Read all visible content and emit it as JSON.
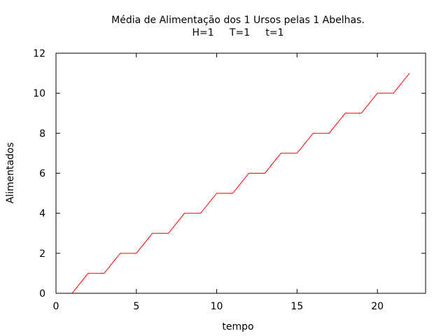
{
  "chart_data": {
    "type": "line",
    "title_line1": "Média de Alimentação dos 1 Ursos pelas 1 Abelhas.",
    "title_line2": "H=1     T=1     t=1",
    "xlabel": "tempo",
    "ylabel": "Alimentados",
    "xlim": [
      0,
      23
    ],
    "ylim": [
      0,
      12
    ],
    "x_ticks": [
      0,
      5,
      10,
      15,
      20
    ],
    "y_ticks": [
      0,
      2,
      4,
      6,
      8,
      10,
      12
    ],
    "grid": false,
    "legend": "none",
    "series": [
      {
        "color": "#ff0000",
        "x": [
          1,
          2,
          3,
          4,
          5,
          6,
          7,
          8,
          9,
          10,
          11,
          12,
          13,
          14,
          15,
          16,
          17,
          18,
          19,
          20,
          21,
          22
        ],
        "y": [
          0,
          1,
          1,
          2,
          2,
          3,
          3,
          4,
          4,
          5,
          5,
          6,
          6,
          7,
          7,
          8,
          8,
          9,
          9,
          10,
          10,
          11
        ]
      }
    ]
  }
}
